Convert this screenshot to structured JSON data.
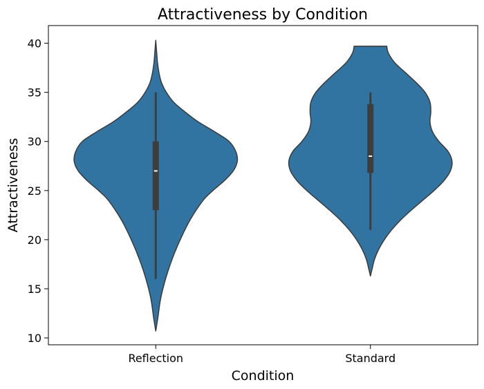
{
  "chart_data": {
    "type": "violin",
    "title": "Attractiveness by Condition",
    "xlabel": "Condition",
    "ylabel": "Attractiveness",
    "categories": [
      "Reflection",
      "Standard"
    ],
    "ylim": [
      9.3,
      41.8
    ],
    "yticks": [
      10,
      15,
      20,
      25,
      30,
      35,
      40
    ],
    "grid": false,
    "colors": {
      "body": "#3274a1",
      "outline": "#3a3a3a",
      "box": "#3d3d3d",
      "median": "#ffffff"
    },
    "violins": [
      {
        "category": "Reflection",
        "range": [
          10.7,
          40.3
        ],
        "whisker": [
          16,
          35
        ],
        "quartiles": [
          23,
          30
        ],
        "median": 27,
        "profile": [
          [
            10.7,
            0.0
          ],
          [
            12,
            0.025
          ],
          [
            14,
            0.06
          ],
          [
            16,
            0.12
          ],
          [
            18,
            0.2
          ],
          [
            20,
            0.3
          ],
          [
            22,
            0.42
          ],
          [
            24,
            0.58
          ],
          [
            25,
            0.7
          ],
          [
            26,
            0.84
          ],
          [
            27,
            0.95
          ],
          [
            28,
            1.0
          ],
          [
            29,
            0.98
          ],
          [
            30,
            0.9
          ],
          [
            31,
            0.72
          ],
          [
            32,
            0.52
          ],
          [
            33,
            0.36
          ],
          [
            34,
            0.22
          ],
          [
            35,
            0.13
          ],
          [
            36,
            0.07
          ],
          [
            37,
            0.04
          ],
          [
            38,
            0.022
          ],
          [
            39,
            0.012
          ],
          [
            40.3,
            0.0
          ]
        ]
      },
      {
        "category": "Standard",
        "range": [
          16.3,
          39.7
        ],
        "whisker": [
          21,
          35
        ],
        "quartiles": [
          26.8,
          33.8
        ],
        "median": 28.5,
        "profile": [
          [
            16.3,
            0.0
          ],
          [
            17,
            0.02
          ],
          [
            18,
            0.05
          ],
          [
            19,
            0.1
          ],
          [
            20,
            0.17
          ],
          [
            21,
            0.26
          ],
          [
            22,
            0.37
          ],
          [
            23,
            0.5
          ],
          [
            24,
            0.64
          ],
          [
            25,
            0.78
          ],
          [
            26,
            0.9
          ],
          [
            27,
            0.98
          ],
          [
            28,
            1.0
          ],
          [
            29,
            0.95
          ],
          [
            30,
            0.84
          ],
          [
            31,
            0.76
          ],
          [
            32,
            0.73
          ],
          [
            33,
            0.74
          ],
          [
            34,
            0.73
          ],
          [
            35,
            0.67
          ],
          [
            36,
            0.56
          ],
          [
            37,
            0.43
          ],
          [
            38,
            0.3
          ],
          [
            39,
            0.22
          ],
          [
            39.7,
            0.2
          ]
        ]
      }
    ]
  }
}
